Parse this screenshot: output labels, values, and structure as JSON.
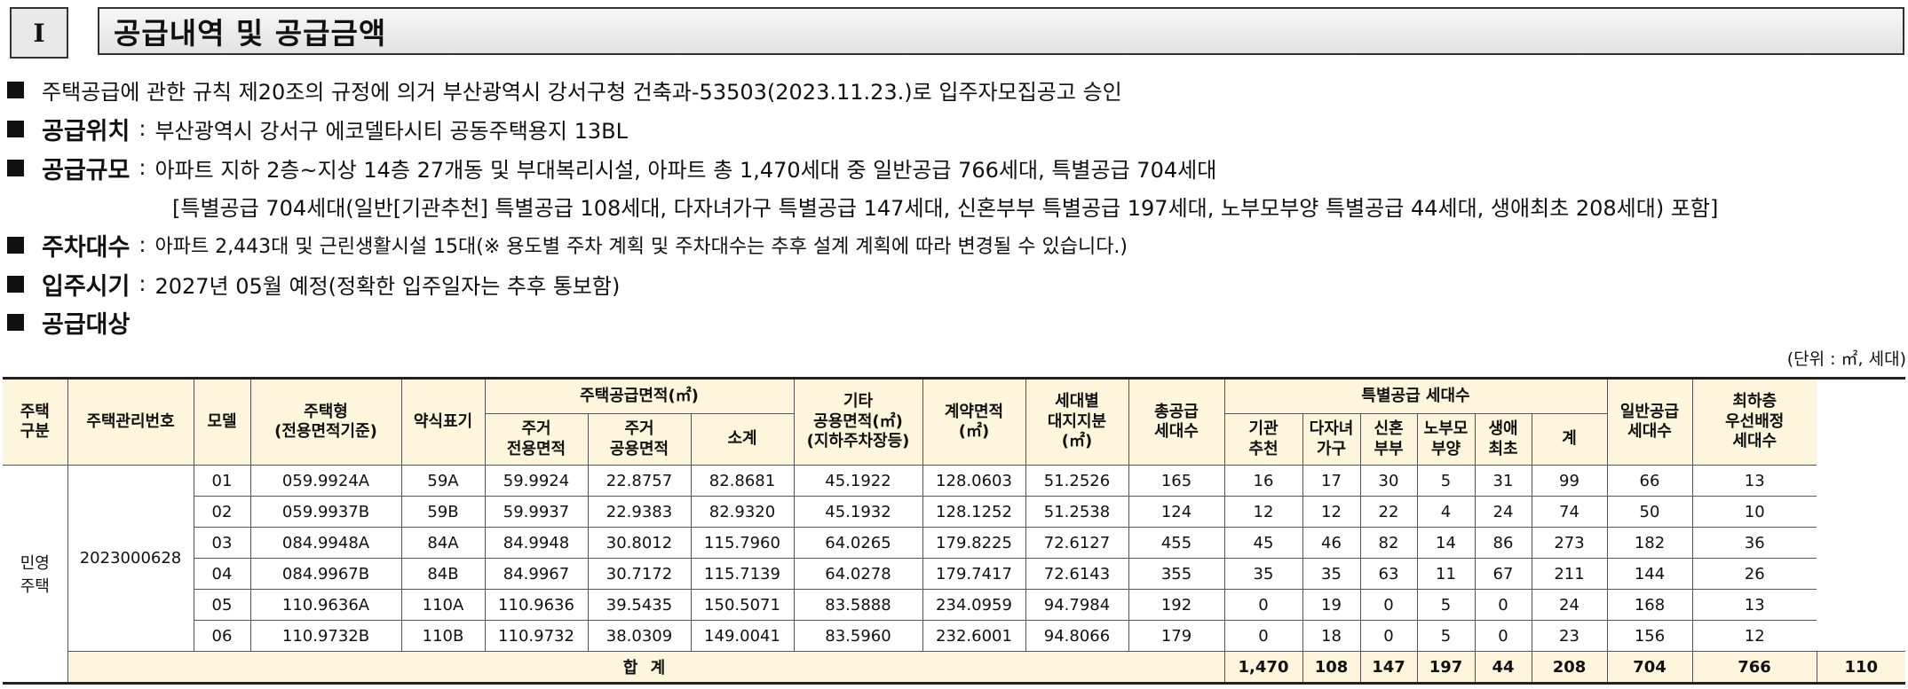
{
  "section": {
    "number": "I",
    "title": "공급내역 및 공급금액"
  },
  "info": {
    "approval": "주택공급에 관한 규칙 제20조의 규정에 의거 부산광역시 강서구청 건축과-53503(2023.11.23.)로 입주자모집공고 승인",
    "location_label": "공급위치",
    "location": "부산광역시 강서구 에코델타시티 공동주택용지 13BL",
    "scale_label": "공급규모",
    "scale": "아파트 지하 2층~지상 14층 27개동 및 부대복리시설, 아파트 총 1,470세대 중 일반공급 766세대, 특별공급 704세대",
    "scale_detail": "[특별공급 704세대(일반[기관추천] 특별공급 108세대, 다자녀가구 특별공급 147세대, 신혼부부 특별공급 197세대, 노부모부양 특별공급 44세대, 생애최초 208세대) 포함]",
    "parking_label": "주차대수",
    "parking": "아파트 2,443대 및 근린생활시설 15대(※ 용도별 주차 계획 및 주차대수는 추후 설계 계획에 따라 변경될 수 있습니다.)",
    "movein_label": "입주시기",
    "movein": "2027년 05월 예정(정확한 입주일자는 추후 통보함)",
    "target_label": "공급대상",
    "separator": ":"
  },
  "unit_note": "(단위 : ㎡, 세대)",
  "table": {
    "headers": {
      "housing_type": "주택\n구분",
      "mgmt_no": "주택관리번호",
      "model": "모델",
      "unit_type": "주택형\n(전용면적기준)",
      "abbr": "약식표기",
      "supply_area": "주택공급면적(㎡)",
      "exclusive": "주거\n전용면적",
      "common": "주거\n공용면적",
      "subtotal": "소계",
      "other_common": "기타\n공용면적(㎡)\n(지하주차장등)",
      "contract": "계약면적\n(㎡)",
      "land_share": "세대별\n대지지분\n(㎡)",
      "total_units": "총공급\n세대수",
      "special": "특별공급 세대수",
      "institution": "기관\n추천",
      "multichild": "다자녀\n가구",
      "newlywed": "신혼\n부부",
      "elderly": "노부모\n부양",
      "firsttime": "생애\n최초",
      "special_sum": "계",
      "general": "일반공급\n세대수",
      "lowest_floor": "최하층\n우선배정\n세대수"
    },
    "group_label": "민영\n주택",
    "mgmt_no_value": "2023000628",
    "rows": [
      {
        "model": "01",
        "unit_type": "059.9924A",
        "abbr": "59A",
        "exclusive": "59.9924",
        "common": "22.8757",
        "subtotal": "82.8681",
        "other_common": "45.1922",
        "contract": "128.0603",
        "land_share": "51.2526",
        "total_units": "165",
        "institution": "16",
        "multichild": "17",
        "newlywed": "30",
        "elderly": "5",
        "firsttime": "31",
        "special_sum": "99",
        "general": "66",
        "lowest_floor": "13"
      },
      {
        "model": "02",
        "unit_type": "059.9937B",
        "abbr": "59B",
        "exclusive": "59.9937",
        "common": "22.9383",
        "subtotal": "82.9320",
        "other_common": "45.1932",
        "contract": "128.1252",
        "land_share": "51.2538",
        "total_units": "124",
        "institution": "12",
        "multichild": "12",
        "newlywed": "22",
        "elderly": "4",
        "firsttime": "24",
        "special_sum": "74",
        "general": "50",
        "lowest_floor": "10"
      },
      {
        "model": "03",
        "unit_type": "084.9948A",
        "abbr": "84A",
        "exclusive": "84.9948",
        "common": "30.8012",
        "subtotal": "115.7960",
        "other_common": "64.0265",
        "contract": "179.8225",
        "land_share": "72.6127",
        "total_units": "455",
        "institution": "45",
        "multichild": "46",
        "newlywed": "82",
        "elderly": "14",
        "firsttime": "86",
        "special_sum": "273",
        "general": "182",
        "lowest_floor": "36"
      },
      {
        "model": "04",
        "unit_type": "084.9967B",
        "abbr": "84B",
        "exclusive": "84.9967",
        "common": "30.7172",
        "subtotal": "115.7139",
        "other_common": "64.0278",
        "contract": "179.7417",
        "land_share": "72.6143",
        "total_units": "355",
        "institution": "35",
        "multichild": "35",
        "newlywed": "63",
        "elderly": "11",
        "firsttime": "67",
        "special_sum": "211",
        "general": "144",
        "lowest_floor": "26"
      },
      {
        "model": "05",
        "unit_type": "110.9636A",
        "abbr": "110A",
        "exclusive": "110.9636",
        "common": "39.5435",
        "subtotal": "150.5071",
        "other_common": "83.5888",
        "contract": "234.0959",
        "land_share": "94.7984",
        "total_units": "192",
        "institution": "0",
        "multichild": "19",
        "newlywed": "0",
        "elderly": "5",
        "firsttime": "0",
        "special_sum": "24",
        "general": "168",
        "lowest_floor": "13"
      },
      {
        "model": "06",
        "unit_type": "110.9732B",
        "abbr": "110B",
        "exclusive": "110.9732",
        "common": "38.0309",
        "subtotal": "149.0041",
        "other_common": "83.5960",
        "contract": "232.6001",
        "land_share": "94.8066",
        "total_units": "179",
        "institution": "0",
        "multichild": "18",
        "newlywed": "0",
        "elderly": "5",
        "firsttime": "0",
        "special_sum": "23",
        "general": "156",
        "lowest_floor": "12"
      }
    ],
    "total": {
      "label": "합 계",
      "total_units": "1,470",
      "institution": "108",
      "multichild": "147",
      "newlywed": "197",
      "elderly": "44",
      "firsttime": "208",
      "special_sum": "704",
      "general": "766",
      "lowest_floor": "110"
    }
  }
}
